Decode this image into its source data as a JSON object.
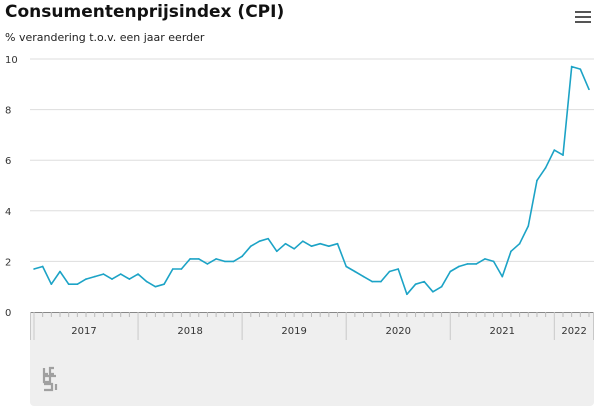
{
  "header": {
    "title": "Consumentenprijsindex (CPI)",
    "subtitle": "% verandering t.o.v. een jaar eerder"
  },
  "menu": {
    "icon": "hamburger-menu-icon"
  },
  "footer": {
    "logo_icon": "cbs-logo-icon"
  },
  "colors": {
    "series": "#1ca3c6",
    "grid": "#dddddd",
    "axis_band": "#efefef",
    "text": "#111111"
  },
  "chart_data": {
    "type": "line",
    "title": "Consumentenprijsindex (CPI)",
    "subtitle": "% verandering t.o.v. een jaar eerder",
    "xlabel": "",
    "ylabel": "",
    "ylim": [
      0,
      10
    ],
    "yticks": [
      0,
      2,
      4,
      6,
      8,
      10
    ],
    "xlim": [
      "2017-01",
      "2022-05"
    ],
    "year_labels": [
      "2017",
      "2018",
      "2019",
      "2020",
      "2021",
      "2022"
    ],
    "grid": "horizontal",
    "legend": "none",
    "series": [
      {
        "x": [
          "2017-01",
          "2017-02",
          "2017-03",
          "2017-04",
          "2017-05",
          "2017-06",
          "2017-07",
          "2017-08",
          "2017-09",
          "2017-10",
          "2017-11",
          "2017-12",
          "2018-01",
          "2018-02",
          "2018-03",
          "2018-04",
          "2018-05",
          "2018-06",
          "2018-07",
          "2018-08",
          "2018-09",
          "2018-10",
          "2018-11",
          "2018-12",
          "2019-01",
          "2019-02",
          "2019-03",
          "2019-04",
          "2019-05",
          "2019-06",
          "2019-07",
          "2019-08",
          "2019-09",
          "2019-10",
          "2019-11",
          "2019-12",
          "2020-01",
          "2020-02",
          "2020-03",
          "2020-04",
          "2020-05",
          "2020-06",
          "2020-07",
          "2020-08",
          "2020-09",
          "2020-10",
          "2020-11",
          "2020-12",
          "2021-01",
          "2021-02",
          "2021-03",
          "2021-04",
          "2021-05",
          "2021-06",
          "2021-07",
          "2021-08",
          "2021-09",
          "2021-10",
          "2021-11",
          "2021-12",
          "2022-01",
          "2022-02",
          "2022-03",
          "2022-04",
          "2022-05"
        ],
        "values": [
          1.7,
          1.8,
          1.1,
          1.6,
          1.1,
          1.1,
          1.3,
          1.4,
          1.5,
          1.3,
          1.5,
          1.3,
          1.5,
          1.2,
          1.0,
          1.1,
          1.7,
          1.7,
          2.1,
          2.1,
          1.9,
          2.1,
          2.0,
          2.0,
          2.2,
          2.6,
          2.8,
          2.9,
          2.4,
          2.7,
          2.5,
          2.8,
          2.6,
          2.7,
          2.6,
          2.7,
          1.8,
          1.6,
          1.4,
          1.2,
          1.2,
          1.6,
          1.7,
          0.7,
          1.1,
          1.2,
          0.8,
          1.0,
          1.6,
          1.8,
          1.9,
          1.9,
          2.1,
          2.0,
          1.4,
          2.4,
          2.7,
          3.4,
          5.2,
          5.7,
          6.4,
          6.2,
          9.7,
          9.6,
          8.8
        ]
      }
    ]
  }
}
